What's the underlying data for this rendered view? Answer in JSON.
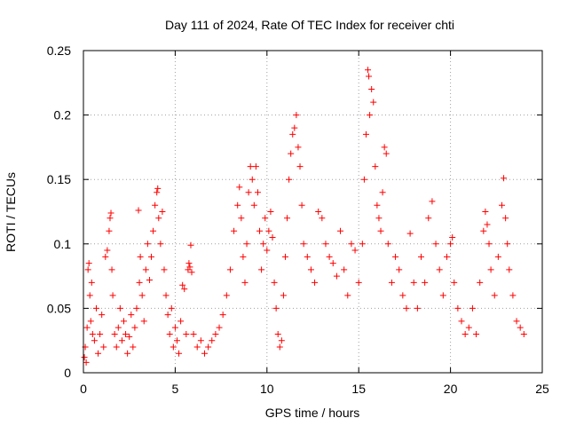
{
  "chart_data": {
    "type": "scatter",
    "title": "Day 111 of 2024, Rate Of TEC Index for receiver chti",
    "xlabel": "GPS time / hours",
    "ylabel": "ROTI / TECUs",
    "xlim": [
      0,
      25
    ],
    "ylim": [
      0,
      0.25
    ],
    "x_ticks": [
      0,
      5,
      10,
      15,
      20,
      25
    ],
    "y_ticks": [
      0,
      0.05,
      0.1,
      0.15,
      0.2,
      0.25
    ],
    "x_tick_labels": [
      "0",
      "5",
      "10",
      "15",
      "20",
      "25"
    ],
    "y_tick_labels": [
      "0",
      "0.05",
      "0.1",
      "0.15",
      "0.2",
      "0.25"
    ],
    "grid": true,
    "marker": "+",
    "color": "#ff0000",
    "series": [
      {
        "points": [
          [
            0.05,
            0.012
          ],
          [
            0.1,
            0.02
          ],
          [
            0.15,
            0.008
          ],
          [
            0.2,
            0.035
          ],
          [
            0.25,
            0.08
          ],
          [
            0.3,
            0.085
          ],
          [
            0.35,
            0.06
          ],
          [
            0.4,
            0.04
          ],
          [
            0.45,
            0.07
          ],
          [
            0.5,
            0.03
          ],
          [
            0.6,
            0.025
          ],
          [
            0.7,
            0.05
          ],
          [
            0.8,
            0.015
          ],
          [
            0.9,
            0.03
          ],
          [
            1.0,
            0.045
          ],
          [
            1.1,
            0.02
          ],
          [
            1.2,
            0.09
          ],
          [
            1.3,
            0.095
          ],
          [
            1.4,
            0.11
          ],
          [
            1.45,
            0.12
          ],
          [
            1.5,
            0.124
          ],
          [
            1.55,
            0.08
          ],
          [
            1.6,
            0.06
          ],
          [
            1.7,
            0.03
          ],
          [
            1.8,
            0.02
          ],
          [
            1.9,
            0.035
          ],
          [
            2.0,
            0.05
          ],
          [
            2.1,
            0.025
          ],
          [
            2.2,
            0.04
          ],
          [
            2.3,
            0.03
          ],
          [
            2.4,
            0.015
          ],
          [
            2.5,
            0.028
          ],
          [
            2.6,
            0.045
          ],
          [
            2.7,
            0.02
          ],
          [
            2.8,
            0.035
          ],
          [
            2.9,
            0.05
          ],
          [
            3.0,
            0.126
          ],
          [
            3.05,
            0.07
          ],
          [
            3.1,
            0.09
          ],
          [
            3.2,
            0.06
          ],
          [
            3.3,
            0.04
          ],
          [
            3.4,
            0.08
          ],
          [
            3.5,
            0.1
          ],
          [
            3.6,
            0.072
          ],
          [
            3.7,
            0.09
          ],
          [
            3.8,
            0.11
          ],
          [
            3.9,
            0.13
          ],
          [
            4.0,
            0.14
          ],
          [
            4.05,
            0.143
          ],
          [
            4.1,
            0.12
          ],
          [
            4.2,
            0.1
          ],
          [
            4.3,
            0.125
          ],
          [
            4.4,
            0.08
          ],
          [
            4.5,
            0.06
          ],
          [
            4.6,
            0.045
          ],
          [
            4.7,
            0.03
          ],
          [
            4.8,
            0.05
          ],
          [
            4.9,
            0.02
          ],
          [
            5.0,
            0.035
          ],
          [
            5.1,
            0.025
          ],
          [
            5.2,
            0.015
          ],
          [
            5.3,
            0.04
          ],
          [
            5.4,
            0.068
          ],
          [
            5.5,
            0.065
          ],
          [
            5.6,
            0.03
          ],
          [
            5.7,
            0.08
          ],
          [
            5.75,
            0.085
          ],
          [
            5.8,
            0.082
          ],
          [
            5.85,
            0.099
          ],
          [
            5.9,
            0.078
          ],
          [
            6.0,
            0.03
          ],
          [
            6.2,
            0.02
          ],
          [
            6.4,
            0.025
          ],
          [
            6.6,
            0.015
          ],
          [
            6.8,
            0.02
          ],
          [
            7.0,
            0.025
          ],
          [
            7.2,
            0.03
          ],
          [
            7.4,
            0.035
          ],
          [
            7.6,
            0.045
          ],
          [
            7.8,
            0.06
          ],
          [
            8.0,
            0.08
          ],
          [
            8.2,
            0.11
          ],
          [
            8.4,
            0.13
          ],
          [
            8.5,
            0.144
          ],
          [
            8.6,
            0.12
          ],
          [
            8.7,
            0.09
          ],
          [
            8.8,
            0.07
          ],
          [
            8.9,
            0.1
          ],
          [
            9.0,
            0.14
          ],
          [
            9.1,
            0.16
          ],
          [
            9.2,
            0.15
          ],
          [
            9.3,
            0.13
          ],
          [
            9.4,
            0.16
          ],
          [
            9.5,
            0.14
          ],
          [
            9.6,
            0.11
          ],
          [
            9.7,
            0.08
          ],
          [
            9.8,
            0.1
          ],
          [
            9.9,
            0.12
          ],
          [
            10.0,
            0.095
          ],
          [
            10.1,
            0.11
          ],
          [
            10.2,
            0.125
          ],
          [
            10.3,
            0.105
          ],
          [
            10.4,
            0.07
          ],
          [
            10.5,
            0.05
          ],
          [
            10.6,
            0.03
          ],
          [
            10.7,
            0.02
          ],
          [
            10.8,
            0.025
          ],
          [
            10.9,
            0.06
          ],
          [
            11.0,
            0.09
          ],
          [
            11.1,
            0.12
          ],
          [
            11.2,
            0.15
          ],
          [
            11.3,
            0.17
          ],
          [
            11.4,
            0.185
          ],
          [
            11.5,
            0.19
          ],
          [
            11.6,
            0.2
          ],
          [
            11.7,
            0.175
          ],
          [
            11.8,
            0.16
          ],
          [
            11.9,
            0.13
          ],
          [
            12.0,
            0.1
          ],
          [
            12.2,
            0.09
          ],
          [
            12.4,
            0.08
          ],
          [
            12.6,
            0.07
          ],
          [
            12.8,
            0.125
          ],
          [
            13.0,
            0.12
          ],
          [
            13.2,
            0.1
          ],
          [
            13.4,
            0.09
          ],
          [
            13.6,
            0.085
          ],
          [
            13.8,
            0.075
          ],
          [
            14.0,
            0.11
          ],
          [
            14.2,
            0.08
          ],
          [
            14.4,
            0.06
          ],
          [
            14.6,
            0.1
          ],
          [
            14.8,
            0.095
          ],
          [
            15.0,
            0.07
          ],
          [
            15.2,
            0.1
          ],
          [
            15.3,
            0.15
          ],
          [
            15.4,
            0.185
          ],
          [
            15.5,
            0.235
          ],
          [
            15.55,
            0.23
          ],
          [
            15.6,
            0.2
          ],
          [
            15.7,
            0.22
          ],
          [
            15.8,
            0.21
          ],
          [
            15.9,
            0.16
          ],
          [
            16.0,
            0.13
          ],
          [
            16.1,
            0.12
          ],
          [
            16.2,
            0.11
          ],
          [
            16.3,
            0.14
          ],
          [
            16.4,
            0.175
          ],
          [
            16.5,
            0.17
          ],
          [
            16.6,
            0.1
          ],
          [
            16.8,
            0.07
          ],
          [
            17.0,
            0.09
          ],
          [
            17.2,
            0.08
          ],
          [
            17.4,
            0.06
          ],
          [
            17.6,
            0.05
          ],
          [
            17.8,
            0.108
          ],
          [
            18.0,
            0.07
          ],
          [
            18.2,
            0.05
          ],
          [
            18.4,
            0.09
          ],
          [
            18.6,
            0.07
          ],
          [
            18.8,
            0.12
          ],
          [
            19.0,
            0.133
          ],
          [
            19.2,
            0.1
          ],
          [
            19.4,
            0.08
          ],
          [
            19.6,
            0.06
          ],
          [
            19.8,
            0.09
          ],
          [
            20.0,
            0.1
          ],
          [
            20.1,
            0.105
          ],
          [
            20.2,
            0.07
          ],
          [
            20.4,
            0.05
          ],
          [
            20.6,
            0.04
          ],
          [
            20.8,
            0.03
          ],
          [
            21.0,
            0.035
          ],
          [
            21.2,
            0.05
          ],
          [
            21.4,
            0.03
          ],
          [
            21.6,
            0.07
          ],
          [
            21.8,
            0.11
          ],
          [
            21.9,
            0.125
          ],
          [
            22.0,
            0.115
          ],
          [
            22.1,
            0.1
          ],
          [
            22.2,
            0.08
          ],
          [
            22.4,
            0.06
          ],
          [
            22.6,
            0.09
          ],
          [
            22.8,
            0.13
          ],
          [
            22.9,
            0.151
          ],
          [
            23.0,
            0.12
          ],
          [
            23.1,
            0.1
          ],
          [
            23.2,
            0.08
          ],
          [
            23.4,
            0.06
          ],
          [
            23.6,
            0.04
          ],
          [
            23.8,
            0.035
          ],
          [
            24.0,
            0.03
          ]
        ]
      }
    ]
  }
}
